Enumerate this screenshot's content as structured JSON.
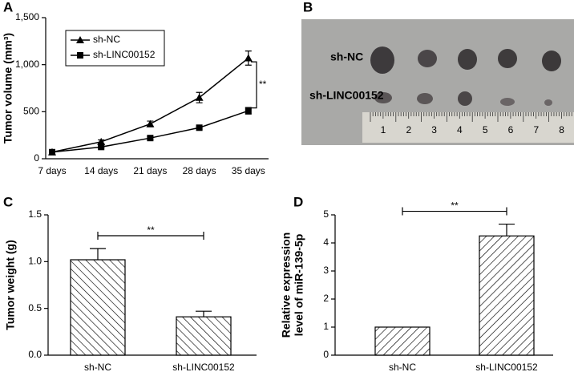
{
  "chart_data": [
    {
      "panel": "A",
      "type": "line",
      "y_label": [
        "Tumor volume (mm³)"
      ],
      "categories": [
        "7 days",
        "14 days",
        "21 days",
        "28 days",
        "35 days"
      ],
      "series": [
        {
          "name": "sh-NC",
          "color": "#000000",
          "marker": "triangle",
          "values": [
            70,
            180,
            370,
            650,
            1070
          ],
          "errors": [
            10,
            20,
            30,
            55,
            75
          ]
        },
        {
          "name": "sh-LINC00152",
          "color": "#000000",
          "marker": "square",
          "values": [
            70,
            125,
            220,
            330,
            510
          ],
          "errors": [
            5,
            10,
            15,
            15,
            35
          ]
        }
      ],
      "ylim": [
        0,
        1500
      ],
      "yticks": [
        0,
        500,
        {
          "value": 1000,
          "label": "1,000"
        },
        {
          "value": 1500,
          "label": "1,500"
        }
      ],
      "annotation": "**"
    },
    {
      "panel": "C",
      "type": "bar",
      "y_label": [
        "Tumor weight (g)"
      ],
      "categories": [
        "sh-NC",
        "sh-LINC00152"
      ],
      "values": [
        1.02,
        0.41
      ],
      "errors": [
        0.12,
        0.06
      ],
      "hatch": "backslash",
      "color": "#000000",
      "ylim": [
        0,
        1.5
      ],
      "yticks": [
        {
          "value": 0,
          "label": "0.0"
        },
        {
          "value": 0.5,
          "label": "0.5"
        },
        {
          "value": 1,
          "label": "1.0"
        },
        {
          "value": 1.5,
          "label": "1.5"
        }
      ],
      "annotation": "**"
    },
    {
      "panel": "D",
      "type": "bar",
      "y_label": [
        "Relative expression",
        "level of miR-139-5p"
      ],
      "categories": [
        "sh-NC",
        "sh-LINC00152"
      ],
      "values": [
        1.0,
        4.25
      ],
      "errors": [
        0,
        0.42
      ],
      "hatch": "slash",
      "color": "#000000",
      "ylim": [
        0,
        5
      ],
      "yticks": [
        0,
        1,
        2,
        3,
        4,
        5
      ],
      "annotation": "**"
    }
  ],
  "photo": {
    "panel": "B",
    "labels": [
      "sh-NC",
      "sh-LINC00152"
    ],
    "ruler_labels": [
      "1",
      "2",
      "3",
      "4",
      "5",
      "6",
      "7",
      "8"
    ]
  }
}
